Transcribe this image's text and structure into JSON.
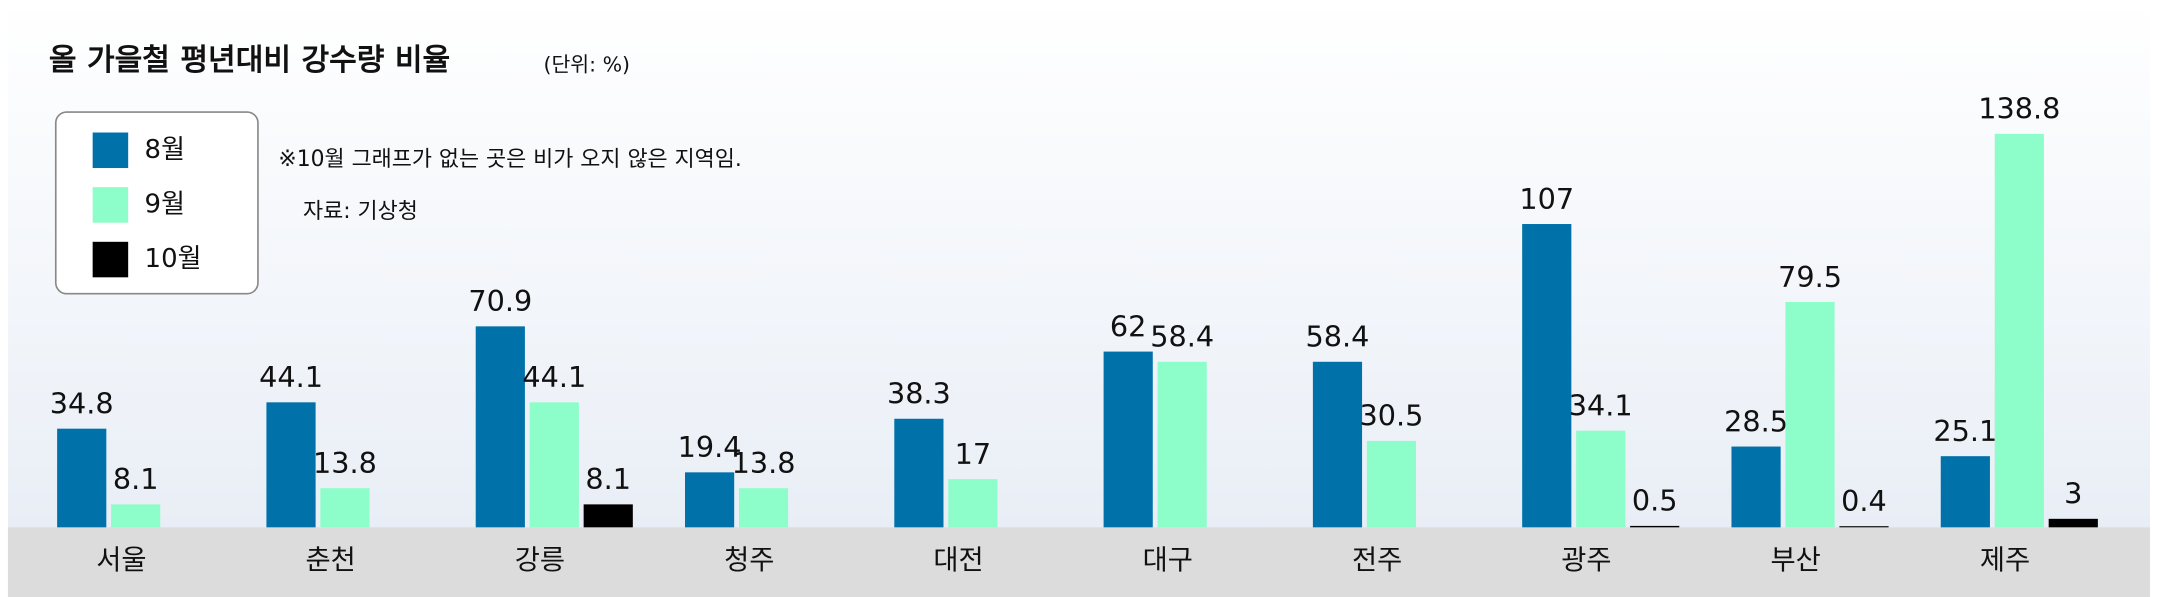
{
  "chart_data": {
    "type": "bar",
    "title": "올 가을철 평년대비 강수량 비율",
    "subtitle": "(단위: %)",
    "note": "※10월 그래프가 없는 곳은 비가 오지 않은 지역임.",
    "source": "자료: 기상청",
    "categories": [
      "서울",
      "춘천",
      "강릉",
      "청주",
      "대전",
      "대구",
      "전주",
      "광주",
      "부산",
      "제주"
    ],
    "series": [
      {
        "name": "8월",
        "color": "#0071a9",
        "values": [
          34.8,
          44.1,
          70.9,
          19.4,
          38.3,
          62,
          58.4,
          107,
          28.5,
          25.1
        ]
      },
      {
        "name": "9월",
        "color": "#8dfdc9",
        "values": [
          8.1,
          13.8,
          44.1,
          13.8,
          17,
          58.4,
          30.5,
          34.1,
          79.5,
          138.8
        ]
      },
      {
        "name": "10월",
        "color": "#000000",
        "values": [
          null,
          null,
          8.1,
          null,
          null,
          null,
          null,
          0.5,
          0.4,
          3
        ]
      }
    ]
  }
}
